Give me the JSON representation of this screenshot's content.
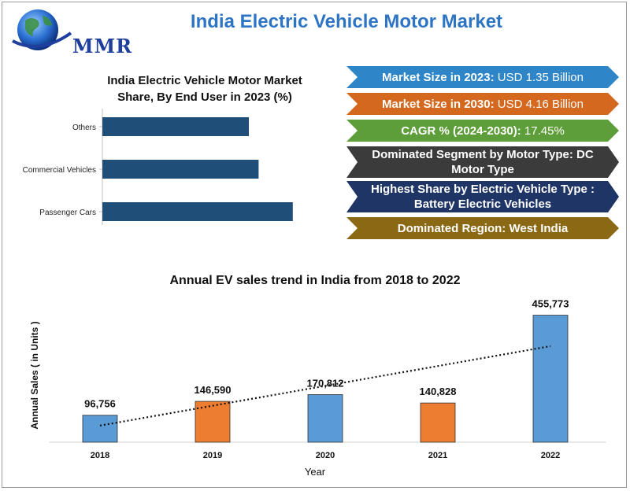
{
  "header": {
    "title": "India Electric Vehicle Motor Market",
    "logo_text": "MMR"
  },
  "share_chart": {
    "title_line1": "India Electric Vehicle Motor Market",
    "title_line2": "Share, By End User in 2023 (%)"
  },
  "highlights": [
    {
      "label": "Market Size in 2023:",
      "value": " USD 1.35 Billion",
      "color": "#2e86c8"
    },
    {
      "label": "Market Size in 2030:",
      "value": " USD 4.16 Billion",
      "color": "#d4681e"
    },
    {
      "label": "CAGR % (2024-2030):",
      "value": " 17.45%",
      "color": "#5e9e3a"
    },
    {
      "label": "Dominated Segment by Motor Type: DC Motor Type",
      "value": "",
      "color": "#3b3b3b"
    },
    {
      "label": "Highest Share by Electric Vehicle Type : Battery Electric Vehicles",
      "value": "",
      "color": "#1f3566"
    },
    {
      "label": "Dominated Region: West India",
      "value": "",
      "color": "#8b6914"
    }
  ],
  "ev_chart_title": "Annual EV sales trend in India from 2018 to 2022",
  "chart_data": [
    {
      "type": "bar",
      "orientation": "horizontal",
      "title": "India Electric Vehicle Motor Market Share, By End User in 2023 (%)",
      "categories": [
        "Others",
        "Commercial Vehicles",
        "Passenger Cars"
      ],
      "values": [
        30,
        32,
        39
      ],
      "xlim": [
        0,
        40
      ],
      "bar_color": "#1f4e79",
      "grid": false
    },
    {
      "type": "bar",
      "title": "Annual EV sales trend in India from 2018 to 2022",
      "xlabel": "Year",
      "ylabel": "Annual Sales ( in Units )",
      "categories": [
        "2018",
        "2019",
        "2020",
        "2021",
        "2022"
      ],
      "values": [
        96756,
        146590,
        170812,
        140828,
        455773
      ],
      "data_labels": [
        "96,756",
        "146,590",
        "170,812",
        "140,828",
        "455,773"
      ],
      "bar_colors": [
        "#5b9bd5",
        "#ed7d31",
        "#5b9bd5",
        "#ed7d31",
        "#5b9bd5"
      ],
      "ylim": [
        0,
        480000
      ],
      "trendline": "linear, dotted",
      "grid": false
    }
  ]
}
